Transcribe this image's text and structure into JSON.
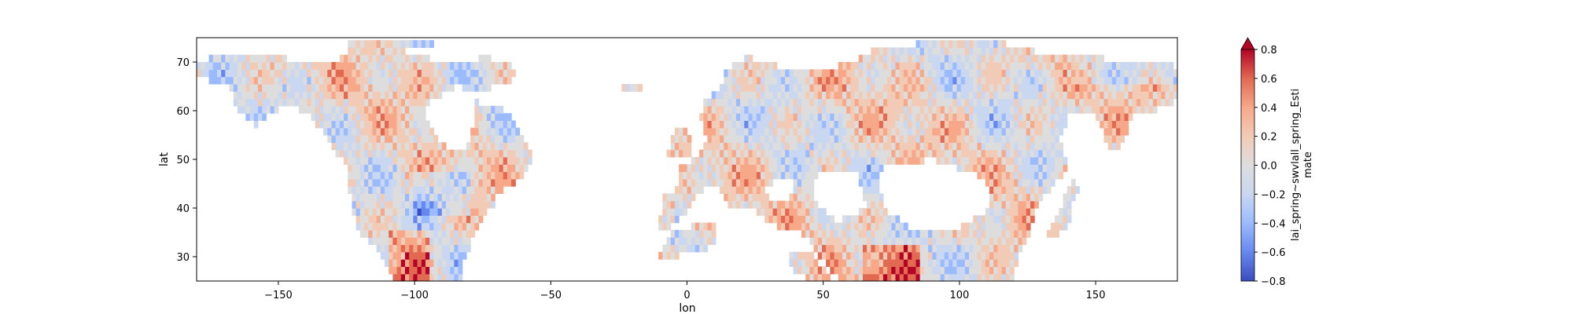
{
  "chart_data": {
    "type": "heatmap",
    "title": "",
    "xlabel": "lon",
    "ylabel": "lat",
    "xlim": [
      -180,
      180
    ],
    "ylim": [
      25,
      75
    ],
    "x_ticks": [
      -150,
      -100,
      -50,
      0,
      50,
      100,
      150
    ],
    "y_ticks": [
      30,
      40,
      50,
      60,
      70
    ],
    "colorbar": {
      "label_lines": [
        "lai_spring~swvlall_spring_Esti",
        "mate"
      ],
      "vmin": -0.8,
      "vmax": 0.8,
      "ticks": [
        -0.8,
        -0.6,
        -0.4,
        -0.2,
        0.0,
        0.2,
        0.4,
        0.6,
        0.8
      ],
      "extend": "max",
      "colormap": "coolwarm",
      "colors": [
        "#3b4cc0",
        "#6688ee",
        "#9abbff",
        "#c9d7f0",
        "#dddddd",
        "#f2cbb7",
        "#f7a889",
        "#e26952",
        "#b40426"
      ]
    },
    "grid": false,
    "legend": "none"
  }
}
